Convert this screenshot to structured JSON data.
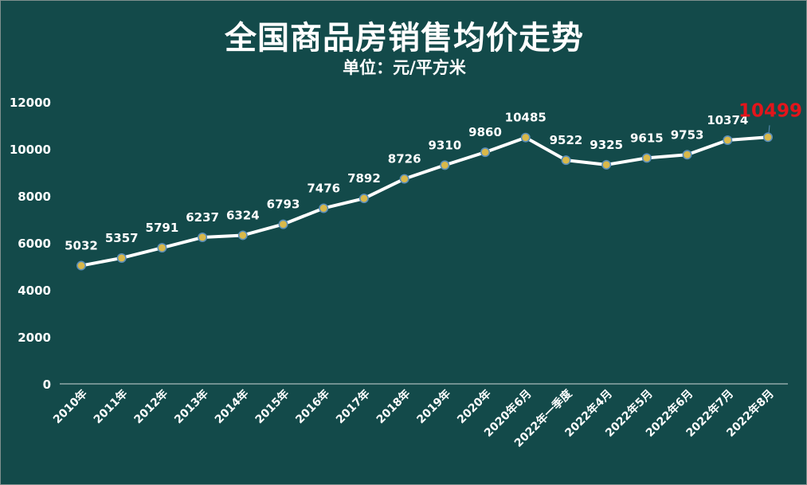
{
  "chart_data": {
    "type": "line",
    "title": "全国商品房销售均价走势",
    "subtitle": "单位：元/平方米",
    "xlabel": "",
    "ylabel": "",
    "categories": [
      "2010年",
      "2011年",
      "2012年",
      "2013年",
      "2014年",
      "2015年",
      "2016年",
      "2017年",
      "2018年",
      "2019年",
      "2020年",
      "2020年6月",
      "2022年一季度",
      "2022年4月",
      "2022年5月",
      "2022年6月",
      "2022年7月",
      "2022年8月"
    ],
    "series": [
      {
        "values": [
          5032,
          5357,
          5791,
          6237,
          6324,
          6793,
          7476,
          7892,
          8726,
          9310,
          9860,
          10485,
          9522,
          9325,
          9615,
          9753,
          10374,
          10499
        ]
      }
    ],
    "ylim": [
      0,
      12000
    ],
    "yticks": [
      0,
      2000,
      4000,
      6000,
      8000,
      10000,
      12000
    ],
    "grid": false,
    "legend": "none",
    "highlight_label": "10499",
    "colors": {
      "background": "#134a4a",
      "line": "#ffffff",
      "marker_fill": "#d9b84a",
      "marker_stroke": "#5b8fb9",
      "label": "#ffffff",
      "highlight": "#e3151b"
    }
  }
}
